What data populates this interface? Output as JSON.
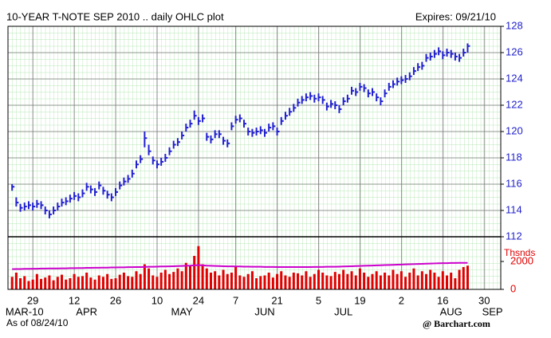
{
  "chart_data": [
    {
      "type": "ohlc",
      "title": "10-YEAR T-NOTE SEP 2010 .. daily OHLC plot",
      "subtitle": "Expires: 09/21/10",
      "color": "#2020d0",
      "high": [
        116.0,
        115.0,
        114.5,
        114.6,
        114.7,
        114.6,
        114.8,
        114.7,
        114.3,
        114.0,
        114.3,
        114.6,
        114.9,
        115.0,
        115.2,
        115.4,
        115.3,
        115.6,
        116.1,
        115.9,
        115.7,
        116.2,
        115.8,
        115.5,
        115.3,
        115.7,
        116.2,
        116.5,
        116.7,
        117.1,
        117.8,
        118.2,
        120.0,
        119.0,
        118.1,
        117.8,
        118.0,
        118.3,
        118.8,
        119.3,
        119.5,
        120.0,
        120.6,
        120.9,
        121.6,
        121.1,
        121.3,
        119.9,
        119.7,
        120.1,
        120.1,
        119.6,
        119.4,
        120.7,
        121.2,
        121.3,
        120.9,
        120.3,
        120.2,
        120.3,
        120.4,
        120.2,
        120.6,
        120.7,
        120.3,
        121.1,
        121.5,
        121.8,
        122.1,
        122.5,
        122.7,
        122.9,
        123.0,
        122.8,
        122.9,
        122.7,
        122.2,
        122.4,
        122.3,
        122.0,
        122.6,
        122.8,
        123.4,
        123.3,
        123.7,
        123.6,
        123.2,
        123.3,
        122.9,
        122.6,
        123.2,
        123.7,
        123.9,
        124.1,
        124.2,
        124.3,
        124.5,
        124.9,
        125.2,
        125.3,
        125.9,
        126.0,
        126.2,
        126.4,
        126.1,
        126.3,
        126.2,
        126.0,
        125.9,
        126.3,
        126.7
      ],
      "low": [
        115.5,
        114.3,
        113.9,
        114.0,
        114.1,
        114.0,
        114.2,
        114.1,
        113.7,
        113.4,
        113.7,
        114.0,
        114.3,
        114.4,
        114.6,
        114.8,
        114.7,
        115.0,
        115.5,
        115.3,
        115.1,
        115.6,
        115.2,
        114.9,
        114.7,
        115.1,
        115.6,
        115.9,
        116.1,
        116.5,
        117.2,
        117.6,
        118.8,
        118.2,
        117.5,
        117.2,
        117.4,
        117.7,
        118.2,
        118.7,
        118.9,
        119.4,
        120.0,
        120.3,
        120.9,
        120.5,
        120.7,
        119.3,
        119.1,
        119.5,
        119.5,
        119.0,
        118.8,
        120.1,
        120.6,
        120.7,
        120.3,
        119.7,
        119.6,
        119.7,
        119.8,
        119.6,
        120.0,
        120.1,
        119.7,
        120.5,
        120.9,
        121.2,
        121.5,
        121.9,
        122.1,
        122.3,
        122.4,
        122.2,
        122.3,
        122.1,
        121.6,
        121.8,
        121.7,
        121.4,
        122.0,
        122.2,
        122.8,
        122.7,
        123.1,
        123.0,
        122.6,
        122.7,
        122.3,
        122.0,
        122.6,
        123.1,
        123.3,
        123.5,
        123.6,
        123.7,
        123.9,
        124.3,
        124.6,
        124.7,
        125.3,
        125.4,
        125.6,
        125.8,
        125.5,
        125.7,
        125.6,
        125.4,
        125.3,
        125.7,
        126.0
      ],
      "close": [
        115.8,
        114.6,
        114.2,
        114.3,
        114.4,
        114.3,
        114.5,
        114.4,
        114.0,
        113.7,
        114.0,
        114.3,
        114.6,
        114.7,
        114.9,
        115.1,
        115.0,
        115.3,
        115.8,
        115.6,
        115.4,
        115.9,
        115.5,
        115.2,
        115.0,
        115.4,
        115.9,
        116.2,
        116.4,
        116.8,
        117.5,
        117.9,
        119.5,
        118.5,
        117.8,
        117.5,
        117.7,
        118.0,
        118.5,
        119.0,
        119.2,
        119.7,
        120.3,
        120.6,
        121.2,
        120.8,
        121.0,
        119.6,
        119.4,
        119.8,
        119.8,
        119.3,
        119.1,
        120.4,
        120.9,
        121.0,
        120.6,
        120.0,
        119.9,
        120.0,
        120.1,
        119.9,
        120.3,
        120.4,
        120.0,
        120.8,
        121.2,
        121.5,
        121.8,
        122.2,
        122.4,
        122.6,
        122.7,
        122.5,
        122.6,
        122.4,
        121.9,
        122.1,
        122.0,
        121.7,
        122.3,
        122.5,
        123.1,
        123.0,
        123.4,
        123.3,
        122.9,
        123.0,
        122.6,
        122.3,
        122.9,
        123.4,
        123.6,
        123.8,
        123.9,
        124.0,
        124.2,
        124.6,
        124.9,
        125.0,
        125.6,
        125.7,
        125.9,
        126.1,
        125.8,
        126.0,
        125.9,
        125.7,
        125.6,
        126.0,
        126.5
      ],
      "xlim": [
        -1,
        118
      ],
      "xticks": [
        {
          "value": 5,
          "label": "29"
        },
        {
          "value": 15,
          "label": "12"
        },
        {
          "value": 25,
          "label": "26"
        },
        {
          "value": 35,
          "label": "10"
        },
        {
          "value": 45,
          "label": "24"
        },
        {
          "value": 54,
          "label": "7"
        },
        {
          "value": 64,
          "label": "21"
        },
        {
          "value": 74,
          "label": "5"
        },
        {
          "value": 84,
          "label": "19"
        },
        {
          "value": 94,
          "label": "2"
        },
        {
          "value": 104,
          "label": "16"
        },
        {
          "value": 114,
          "label": "30"
        }
      ],
      "xticks_months": [
        {
          "value": 3,
          "label": "MAR-10"
        },
        {
          "value": 18,
          "label": "APR"
        },
        {
          "value": 41,
          "label": "MAY"
        },
        {
          "value": 61,
          "label": "JUN"
        },
        {
          "value": 80,
          "label": "JUL"
        },
        {
          "value": 106,
          "label": "AUG"
        },
        {
          "value": 116,
          "label": "SEP"
        }
      ],
      "ylim": [
        112,
        128
      ],
      "yticks": [
        112,
        114,
        116,
        118,
        120,
        122,
        124,
        126,
        128
      ],
      "grid": true
    },
    {
      "type": "bar",
      "ylabel": "Thsnds",
      "xlim": [
        -1,
        118
      ],
      "ylim": [
        0,
        3770
      ],
      "yticks": [
        0,
        2000
      ],
      "series": [
        {
          "type": "bar",
          "color": "#e00000",
          "values": [
            900,
            1200,
            800,
            950,
            600,
            700,
            1100,
            750,
            850,
            1000,
            650,
            900,
            1050,
            700,
            800,
            1100,
            900,
            950,
            1200,
            850,
            700,
            1000,
            900,
            1100,
            750,
            800,
            1050,
            1200,
            950,
            900,
            1300,
            1100,
            1800,
            1500,
            1000,
            900,
            1200,
            1400,
            1100,
            1250,
            1500,
            1300,
            1900,
            1700,
            2400,
            3100,
            1800,
            1500,
            1200,
            1300,
            1000,
            1400,
            1100,
            1200,
            1600,
            1000,
            900,
            1100,
            1300,
            800,
            950,
            1000,
            1200,
            850,
            1100,
            1300,
            1000,
            900,
            1200,
            1150,
            1000,
            1300,
            900,
            1100,
            1400,
            1200,
            1000,
            950,
            1250,
            1100,
            1400,
            1100,
            1300,
            1000,
            1500,
            1200,
            900,
            1100,
            1300,
            1000,
            1200,
            1000,
            1400,
            1100,
            1300,
            900,
            1200,
            1500,
            1000,
            1300,
            1100,
            1400,
            1200,
            900,
            1300,
            1000,
            1200,
            800,
            1400,
            1600,
            1700
          ]
        },
        {
          "type": "line",
          "color": "#cc00cc",
          "values": [
            1450,
            1460,
            1460,
            1470,
            1470,
            1480,
            1480,
            1490,
            1490,
            1500,
            1500,
            1500,
            1510,
            1510,
            1520,
            1520,
            1530,
            1530,
            1540,
            1540,
            1550,
            1550,
            1560,
            1560,
            1570,
            1570,
            1580,
            1580,
            1590,
            1590,
            1600,
            1600,
            1610,
            1620,
            1620,
            1630,
            1640,
            1640,
            1650,
            1660,
            1670,
            1680,
            1690,
            1700,
            1720,
            1740,
            1720,
            1700,
            1690,
            1680,
            1670,
            1660,
            1650,
            1650,
            1640,
            1640,
            1630,
            1630,
            1620,
            1620,
            1620,
            1610,
            1610,
            1610,
            1600,
            1600,
            1600,
            1600,
            1600,
            1600,
            1600,
            1600,
            1600,
            1610,
            1610,
            1610,
            1620,
            1620,
            1620,
            1630,
            1640,
            1650,
            1660,
            1670,
            1680,
            1690,
            1700,
            1710,
            1720,
            1730,
            1740,
            1750,
            1760,
            1770,
            1780,
            1790,
            1800,
            1810,
            1820,
            1830,
            1840,
            1850,
            1860,
            1870,
            1880,
            1880,
            1890,
            1890,
            1900,
            1900,
            1900
          ]
        }
      ]
    }
  ],
  "footer": {
    "as_of": "As of 08/24/10",
    "source": "@ Barchart.com"
  }
}
